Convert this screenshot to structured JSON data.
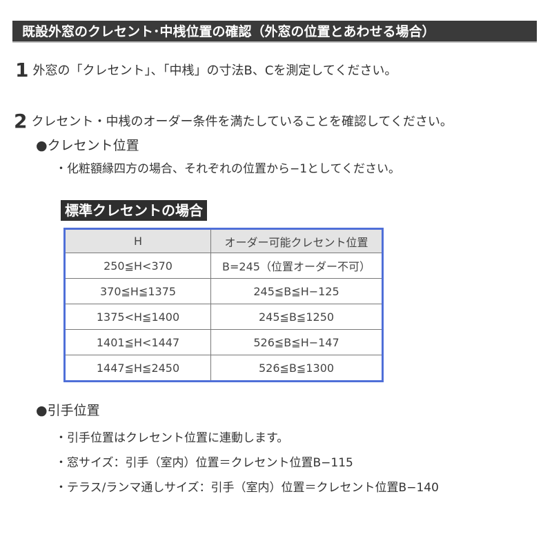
{
  "title": "既設外窓のクレセント･中桟位置の確認（外窓の位置とあわせる場合）",
  "steps": [
    {
      "num": "1",
      "text": "外窓の「クレセント」、「中桟」の寸法B、Cを測定してください。"
    },
    {
      "num": "2",
      "text": "クレセント・中桟のオーダー条件を満たしていることを確認してください。"
    }
  ],
  "crescent": {
    "heading": "●クレセント位置",
    "note": "・化粧額縁四方の場合、それぞれの位置から−1としてください。"
  },
  "table": {
    "label": "標準クレセントの場合",
    "headers": [
      "H",
      "オーダー可能クレセント位置"
    ],
    "rows": [
      [
        "250≦H<370",
        "B=245（位置オーダー不可）"
      ],
      [
        "370≦H≦1375",
        "245≦B≦H−125"
      ],
      [
        "1375<H≦1400",
        "245≦B≦1250"
      ],
      [
        "1401≦H<1447",
        "526≦B≦H−147"
      ],
      [
        "1447≦H≦2450",
        "526≦B≦1300"
      ]
    ]
  },
  "handle": {
    "heading": "●引手位置",
    "notes": [
      "・引手位置はクレセント位置に連動します。",
      "・窓サイズ：引手（室内）位置＝クレセント位置B−115",
      "・テラス/ランマ通しサイズ：引手（室内）位置＝クレセント位置B−140"
    ]
  },
  "colors": {
    "table_border": "#4f6fd8",
    "title_bg": "#3a3a3a"
  }
}
